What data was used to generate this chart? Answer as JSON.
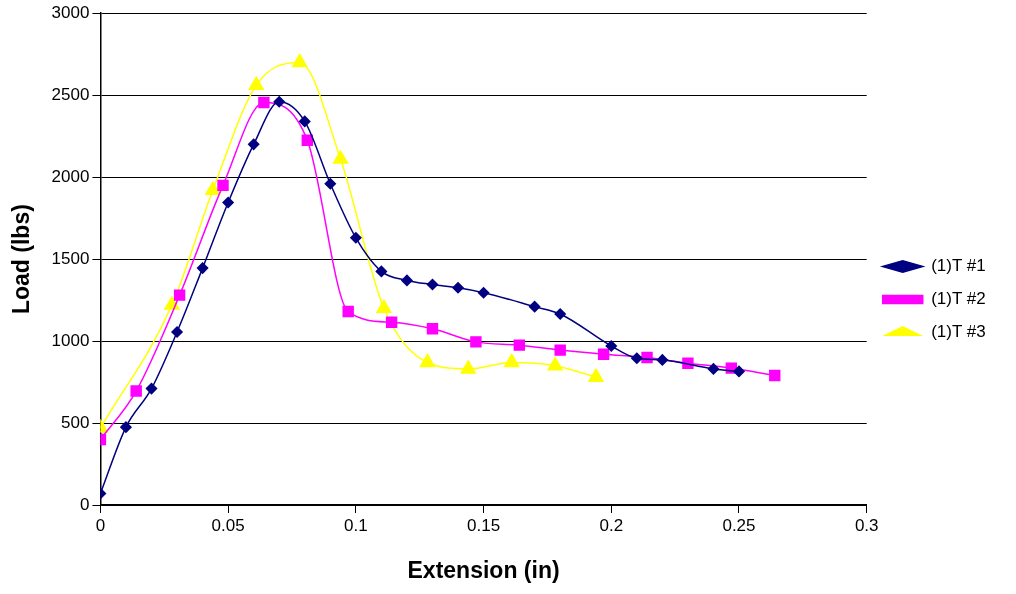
{
  "chart_data": {
    "type": "line",
    "xlabel": "Extension (in)",
    "ylabel": "Load (lbs)",
    "xlim": [
      0,
      0.3
    ],
    "xticks": [
      0,
      0.05,
      0.1,
      0.15,
      0.2,
      0.25,
      0.3
    ],
    "ylim": [
      0,
      3000
    ],
    "yticks": [
      0,
      500,
      1000,
      1500,
      2000,
      2500,
      3000
    ],
    "grid": "y",
    "legend": "right",
    "line_style": "solid",
    "series": [
      {
        "name": "(1)T #1",
        "color": "#000080",
        "marker": "diamond",
        "x": [
          0,
          0.01,
          0.02,
          0.03,
          0.04,
          0.05,
          0.06,
          0.07,
          0.08,
          0.09,
          0.1,
          0.11,
          0.12,
          0.13,
          0.14,
          0.15,
          0.17,
          0.18,
          0.2,
          0.21,
          0.22,
          0.24,
          0.25
        ],
        "values": [
          70,
          475,
          710,
          1055,
          1445,
          1845,
          2200,
          2460,
          2340,
          1960,
          1630,
          1425,
          1370,
          1345,
          1325,
          1295,
          1210,
          1165,
          970,
          895,
          885,
          830,
          815
        ]
      },
      {
        "name": "(1)T #2",
        "color": "#ff00ff",
        "marker": "square",
        "x": [
          0,
          0.014,
          0.031,
          0.048,
          0.064,
          0.081,
          0.097,
          0.114,
          0.13,
          0.147,
          0.164,
          0.18,
          0.197,
          0.214,
          0.23,
          0.247,
          0.264
        ],
        "values": [
          400,
          695,
          1280,
          1950,
          2455,
          2225,
          1180,
          1115,
          1075,
          995,
          975,
          945,
          920,
          900,
          865,
          835,
          790
        ]
      },
      {
        "name": "(1)T #3",
        "color": "#ffff00",
        "marker": "triangle",
        "x": [
          0,
          0.028,
          0.044,
          0.061,
          0.078,
          0.094,
          0.111,
          0.128,
          0.144,
          0.161,
          0.178,
          0.194
        ],
        "values": [
          470,
          1220,
          1920,
          2560,
          2700,
          2110,
          1200,
          870,
          830,
          870,
          850,
          780
        ]
      }
    ]
  }
}
